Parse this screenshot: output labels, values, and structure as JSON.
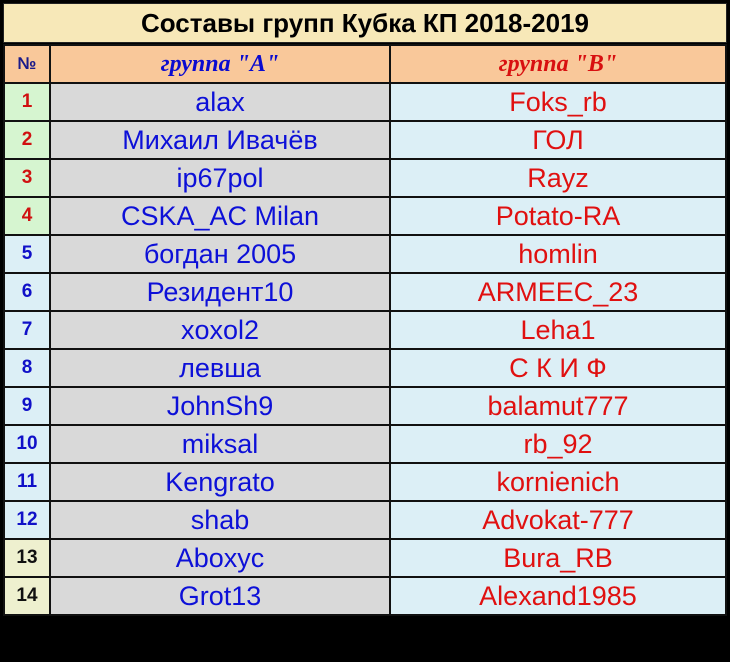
{
  "title": "Составы групп Кубка КП 2018-2019",
  "header": {
    "num": "№",
    "group_a": "группа \"А\"",
    "group_b": "группа \"В\""
  },
  "rows": [
    {
      "num": "1",
      "a": "alax",
      "b": "Foks_rb",
      "num_color": "#e8e8e8",
      "num_text": "#d01010",
      "num_bg": "#d6f5d0"
    },
    {
      "num": "2",
      "a": "Михаил Ивачёв",
      "b": "ГОЛ",
      "num_text": "#d01010",
      "num_bg": "#d6f5d0"
    },
    {
      "num": "3",
      "a": "ip67pol",
      "b": "Rayz",
      "num_text": "#d01010",
      "num_bg": "#d6f5d0"
    },
    {
      "num": "4",
      "a": "CSKA_AC Milan",
      "b": "Potato-RA",
      "num_text": "#d01010",
      "num_bg": "#d6f5d0"
    },
    {
      "num": "5",
      "a": "богдан 2005",
      "b": "homlin",
      "num_text": "#1010c8",
      "num_bg": "#dceff6"
    },
    {
      "num": "6",
      "a": "Резидент10",
      "b": "ARMEEC_23",
      "num_text": "#1010c8",
      "num_bg": "#dceff6"
    },
    {
      "num": "7",
      "a": "xoxol2",
      "b": "Leha1",
      "num_text": "#1010c8",
      "num_bg": "#dceff6"
    },
    {
      "num": "8",
      "a": "левша",
      "b": "С К И Ф",
      "num_text": "#1010c8",
      "num_bg": "#dceff6"
    },
    {
      "num": "9",
      "a": "JohnSh9",
      "b": "balamut777",
      "num_text": "#1010c8",
      "num_bg": "#dceff6"
    },
    {
      "num": "10",
      "a": "miksal",
      "b": "rb_92",
      "num_text": "#1010c8",
      "num_bg": "#dceff6"
    },
    {
      "num": "11",
      "a": "Kengrato",
      "b": "kornienich",
      "num_text": "#1010c8",
      "num_bg": "#dceff6"
    },
    {
      "num": "12",
      "a": "shab",
      "b": "Advokat-777",
      "num_text": "#1010c8",
      "num_bg": "#dceff6"
    },
    {
      "num": "13",
      "a": "Aboxyc",
      "b": "Bura_RB",
      "num_text": "#111111",
      "num_bg": "#eef0cf"
    },
    {
      "num": "14",
      "a": "Grot13",
      "b": "Alexand1985",
      "num_text": "#111111",
      "num_bg": "#eef0cf"
    }
  ]
}
